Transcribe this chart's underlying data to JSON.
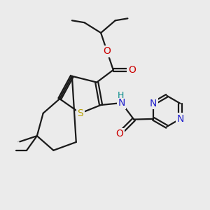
{
  "background_color": "#ebebeb",
  "bond_color": "#1a1a1a",
  "S_color": "#b8a000",
  "N_color": "#2222cc",
  "O_color": "#cc0000",
  "NH_color": "#008888",
  "line_width": 1.6,
  "figsize": [
    3.0,
    3.0
  ],
  "dpi": 100,
  "xlim": [
    0,
    10
  ],
  "ylim": [
    0,
    10
  ]
}
